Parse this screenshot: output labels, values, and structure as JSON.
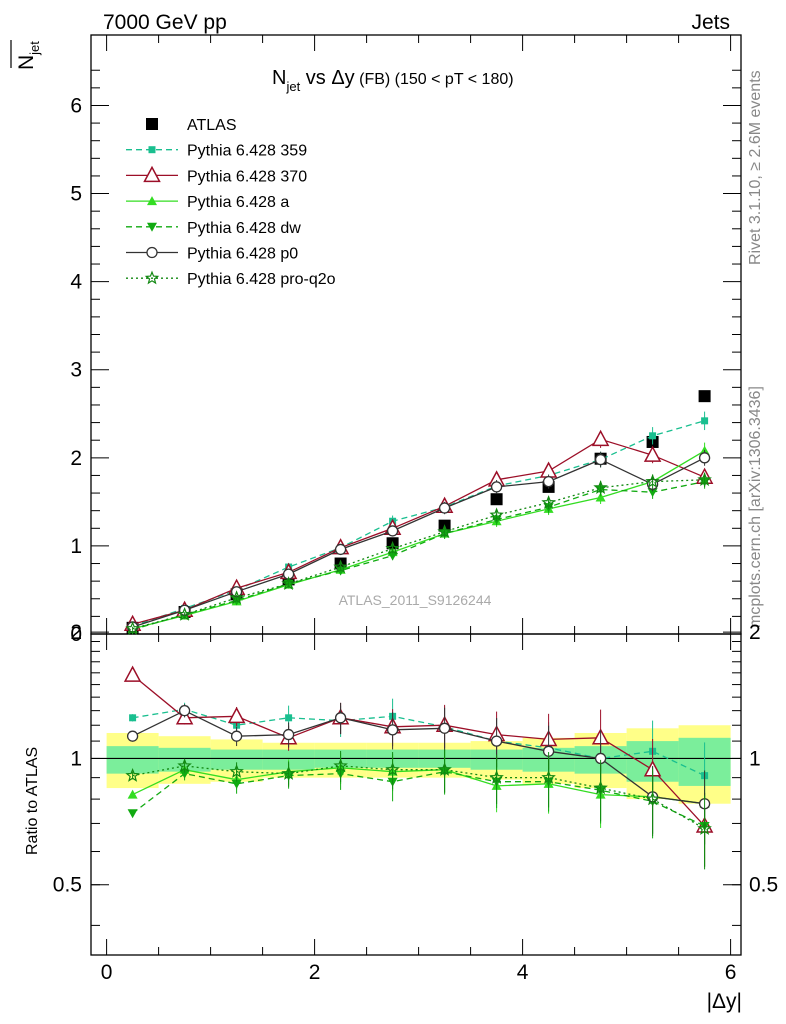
{
  "header": {
    "left": "7000 GeV pp",
    "right": "Jets"
  },
  "title": {
    "n": "N",
    "sub": "jet",
    "vs": " vs ",
    "delta": "Δy",
    "fb": " (FB) ",
    "cut": "(150 < pT < 180)"
  },
  "ylabel": {
    "n": "N",
    "sub": "jet"
  },
  "xlabel": "|Δy|",
  "ratio_label": "Ratio to ATLAS",
  "watermark": "ATLAS_2011_S9126244",
  "side": {
    "rivet": "Rivet 3.1.10, ≥ 2.6M events",
    "mcplots": "mcplots.cern.ch [arXiv:1306.3436]"
  },
  "colors": {
    "atlas": "#000000",
    "p359": "#19bf8f",
    "p370": "#9c0f28",
    "pa": "#33dd22",
    "pdw": "#11aa11",
    "pp0": "#333333",
    "pq2o": "#118811",
    "band_inner": "#7bee9b",
    "band_outer": "#ffff88"
  },
  "chart_data": [
    {
      "type": "scatter",
      "title": "N_jet vs Δy (FB) (150 < pT < 180)",
      "xlabel": "|Δy|",
      "ylabel": "N_jet",
      "xlim": [
        -0.15,
        6.1
      ],
      "ylim": [
        0,
        6.8
      ],
      "yticks": [
        0,
        1,
        2,
        3,
        4,
        5,
        6
      ],
      "xticks": [
        0,
        2,
        4,
        6
      ],
      "legend_position": "top-left",
      "x": [
        0.25,
        0.75,
        1.25,
        1.75,
        2.25,
        2.75,
        3.25,
        3.75,
        4.25,
        4.75,
        5.25,
        5.75
      ],
      "series": [
        {
          "name": "ATLAS",
          "key": "atlas",
          "marker": "square",
          "line": "none",
          "values": [
            0.07,
            0.25,
            0.45,
            0.62,
            0.8,
            1.03,
            1.23,
            1.53,
            1.67,
            1.99,
            2.18,
            2.7
          ]
        },
        {
          "name": "Pythia 6.428 359",
          "key": "p359",
          "marker": "square-small",
          "line": "dashed",
          "values": [
            0.09,
            0.29,
            0.5,
            0.76,
            0.98,
            1.28,
            1.44,
            1.68,
            1.8,
            1.98,
            2.25,
            2.42
          ]
        },
        {
          "name": "Pythia 6.428 370",
          "key": "p370",
          "marker": "triangle-open",
          "line": "solid",
          "values": [
            0.11,
            0.27,
            0.52,
            0.7,
            0.98,
            1.2,
            1.45,
            1.75,
            1.85,
            2.21,
            2.03,
            1.78
          ]
        },
        {
          "name": "Pythia 6.428 a",
          "key": "pa",
          "marker": "triangle",
          "line": "solid",
          "values": [
            0.06,
            0.21,
            0.37,
            0.56,
            0.73,
            0.93,
            1.14,
            1.28,
            1.42,
            1.55,
            1.73,
            2.08
          ]
        },
        {
          "name": "Pythia 6.428 dw",
          "key": "pdw",
          "marker": "triangle-down",
          "line": "dashed",
          "values": [
            0.05,
            0.22,
            0.38,
            0.57,
            0.72,
            0.89,
            1.14,
            1.3,
            1.44,
            1.64,
            1.61,
            1.73
          ]
        },
        {
          "name": "Pythia 6.428 p0",
          "key": "pp0",
          "marker": "circle-open",
          "line": "solid",
          "values": [
            0.08,
            0.27,
            0.48,
            0.68,
            0.96,
            1.17,
            1.43,
            1.67,
            1.73,
            1.98,
            1.7,
            2.0
          ]
        },
        {
          "name": "Pythia 6.428 pro-q2o",
          "key": "pq2o",
          "marker": "star",
          "line": "dotted",
          "values": [
            0.06,
            0.22,
            0.41,
            0.57,
            0.76,
            0.97,
            1.16,
            1.35,
            1.49,
            1.66,
            1.73,
            1.75
          ]
        }
      ]
    },
    {
      "type": "scatter",
      "ylabel": "Ratio to ATLAS",
      "xlabel": "|Δy|",
      "xlim": [
        -0.15,
        6.1
      ],
      "ylim": [
        0.34,
        1.98
      ],
      "ylog": true,
      "yticks": [
        0.5,
        1,
        2
      ],
      "xticks": [
        0,
        2,
        4,
        6
      ],
      "bands": {
        "x_edges": [
          0,
          0.5,
          1.0,
          1.5,
          2.0,
          2.5,
          3.0,
          3.5,
          4.0,
          4.5,
          5.0,
          5.5,
          6.0
        ],
        "inner": [
          [
            0.92,
            1.07
          ],
          [
            0.93,
            1.06
          ],
          [
            0.94,
            1.05
          ],
          [
            0.94,
            1.05
          ],
          [
            0.95,
            1.05
          ],
          [
            0.95,
            1.05
          ],
          [
            0.95,
            1.05
          ],
          [
            0.94,
            1.05
          ],
          [
            0.93,
            1.06
          ],
          [
            0.92,
            1.07
          ],
          [
            0.88,
            1.1
          ],
          [
            0.86,
            1.12
          ]
        ],
        "outer": [
          [
            0.85,
            1.15
          ],
          [
            0.87,
            1.13
          ],
          [
            0.88,
            1.11
          ],
          [
            0.9,
            1.09
          ],
          [
            0.9,
            1.09
          ],
          [
            0.9,
            1.09
          ],
          [
            0.9,
            1.09
          ],
          [
            0.89,
            1.1
          ],
          [
            0.87,
            1.12
          ],
          [
            0.85,
            1.15
          ],
          [
            0.8,
            1.18
          ],
          [
            0.78,
            1.2
          ]
        ]
      },
      "series": [
        {
          "name": "Pythia 6.428 359",
          "key": "p359",
          "values": [
            1.25,
            1.31,
            1.2,
            1.25,
            1.23,
            1.26,
            1.19,
            1.1,
            1.06,
            1.0,
            1.04,
            0.91
          ]
        },
        {
          "name": "Pythia 6.428 370",
          "key": "p370",
          "values": [
            1.58,
            1.25,
            1.26,
            1.12,
            1.25,
            1.19,
            1.2,
            1.14,
            1.11,
            1.12,
            0.94,
            0.69
          ]
        },
        {
          "name": "Pythia 6.428 a",
          "key": "pa",
          "values": [
            0.82,
            0.94,
            0.89,
            0.93,
            0.95,
            0.93,
            0.94,
            0.86,
            0.87,
            0.82,
            0.81,
            0.78
          ]
        },
        {
          "name": "Pythia 6.428 dw",
          "key": "pdw",
          "values": [
            0.74,
            0.92,
            0.87,
            0.91,
            0.92,
            0.88,
            0.93,
            0.88,
            0.88,
            0.84,
            0.79,
            0.69
          ]
        },
        {
          "name": "Pythia 6.428 p0",
          "key": "pp0",
          "values": [
            1.13,
            1.3,
            1.13,
            1.14,
            1.25,
            1.17,
            1.18,
            1.1,
            1.04,
            1.0,
            0.81,
            0.78
          ]
        },
        {
          "name": "Pythia 6.428 pro-q2o",
          "key": "pq2o",
          "values": [
            0.91,
            0.96,
            0.93,
            0.92,
            0.96,
            0.94,
            0.94,
            0.9,
            0.9,
            0.85,
            0.8,
            0.68
          ]
        }
      ]
    }
  ]
}
